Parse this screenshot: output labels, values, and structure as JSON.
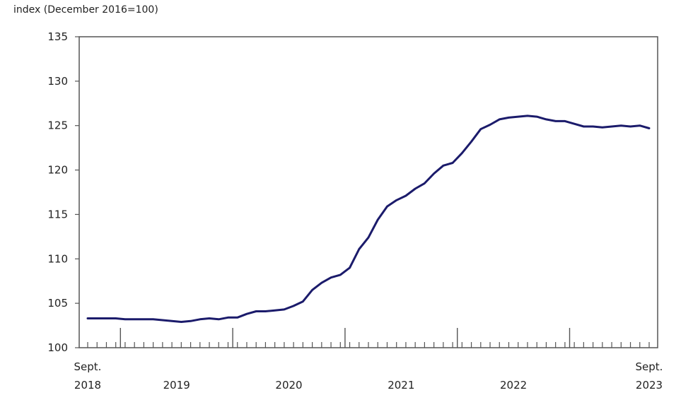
{
  "chart_data": {
    "type": "line",
    "ylabel": "index (December 2016=100)",
    "ylim": [
      100,
      135
    ],
    "yticks": [
      100,
      105,
      110,
      115,
      120,
      125,
      130,
      135
    ],
    "xlabels": [
      {
        "line1": "Sept.",
        "line2": "2018"
      },
      {
        "line1": "",
        "line2": "2019"
      },
      {
        "line1": "",
        "line2": "2020"
      },
      {
        "line1": "",
        "line2": "2021"
      },
      {
        "line1": "",
        "line2": "2022"
      },
      {
        "line1": "Sept.",
        "line2": "2023"
      }
    ],
    "x_start": "2018-09",
    "x_end": "2023-09",
    "line_color": "#1b1b6b",
    "grid": false,
    "legend": "none",
    "series": [
      {
        "x": [
          "2018-09",
          "2018-10",
          "2018-11",
          "2018-12",
          "2019-01",
          "2019-02",
          "2019-03",
          "2019-04",
          "2019-05",
          "2019-06",
          "2019-07",
          "2019-08",
          "2019-09",
          "2019-10",
          "2019-11",
          "2019-12",
          "2020-01",
          "2020-02",
          "2020-03",
          "2020-04",
          "2020-05",
          "2020-06",
          "2020-07",
          "2020-08",
          "2020-09",
          "2020-10",
          "2020-11",
          "2020-12",
          "2021-01",
          "2021-02",
          "2021-03",
          "2021-04",
          "2021-05",
          "2021-06",
          "2021-07",
          "2021-08",
          "2021-09",
          "2021-10",
          "2021-11",
          "2021-12",
          "2022-01",
          "2022-02",
          "2022-03",
          "2022-04",
          "2022-05",
          "2022-06",
          "2022-07",
          "2022-08",
          "2022-09",
          "2022-10",
          "2022-11",
          "2022-12",
          "2023-01",
          "2023-02",
          "2023-03",
          "2023-04",
          "2023-05",
          "2023-06",
          "2023-07",
          "2023-08",
          "2023-09"
        ],
        "values": [
          103.3,
          103.3,
          103.3,
          103.3,
          103.2,
          103.2,
          103.2,
          103.2,
          103.1,
          103.0,
          102.9,
          103.0,
          103.2,
          103.3,
          103.2,
          103.4,
          103.4,
          103.8,
          104.1,
          104.1,
          104.2,
          104.3,
          104.7,
          105.2,
          106.5,
          107.3,
          107.9,
          108.2,
          109.0,
          111.1,
          112.4,
          114.4,
          115.9,
          116.6,
          117.1,
          117.9,
          118.5,
          119.6,
          120.5,
          120.8,
          121.9,
          123.2,
          124.6,
          125.1,
          125.7,
          125.9,
          126.0,
          126.1,
          126.0,
          125.7,
          125.5,
          125.5,
          125.2,
          124.9,
          124.9,
          124.8,
          124.9,
          125.0,
          124.9,
          125.0,
          124.7
        ]
      }
    ]
  }
}
